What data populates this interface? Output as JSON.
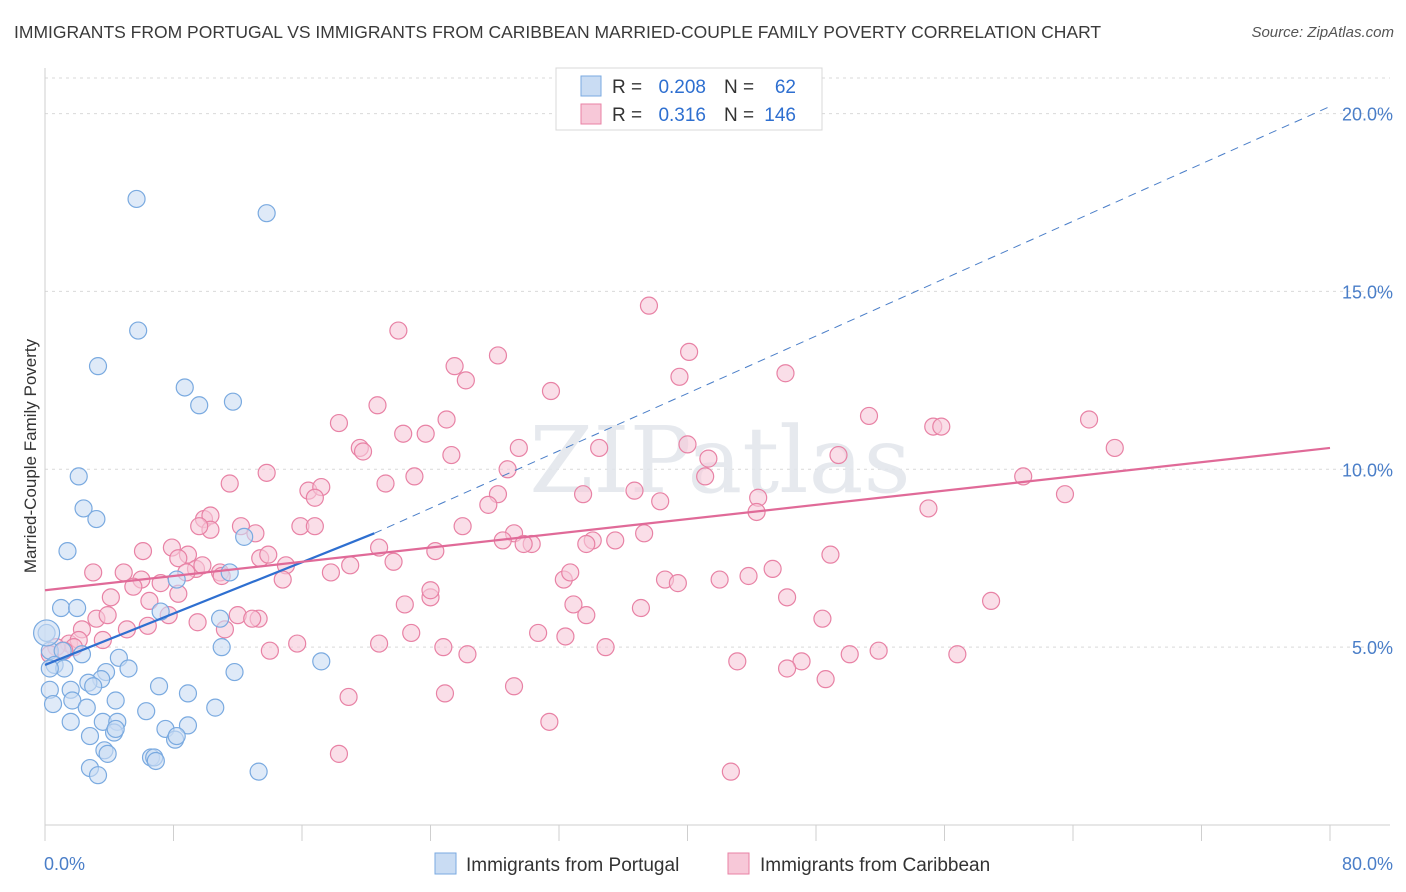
{
  "chart_data": {
    "type": "scatter",
    "title": "IMMIGRANTS FROM PORTUGAL VS IMMIGRANTS FROM CARIBBEAN MARRIED-COUPLE FAMILY POVERTY CORRELATION CHART",
    "source": "Source: ZipAtlas.com",
    "ylabel": "Married-Couple Family Poverty",
    "xlim": [
      0,
      80
    ],
    "ylim": [
      0,
      21
    ],
    "x_tick_labels": [
      "0.0%",
      "80.0%"
    ],
    "y_ticks": [
      5,
      10,
      15,
      20
    ],
    "y_tick_labels": [
      "5.0%",
      "10.0%",
      "15.0%",
      "20.0%"
    ],
    "watermark": "ZIPatlas",
    "legend": [
      {
        "r_label": "R =",
        "r_value": "0.208",
        "n_label": "N =",
        "n_value": "62"
      },
      {
        "r_label": "R =",
        "r_value": "0.316",
        "n_label": "N =",
        "n_value": "146"
      }
    ],
    "series": [
      {
        "name": "Immigrants from Portugal",
        "color": "#7aaae0",
        "fill": "#c9dcf3",
        "trend": {
          "x0": 0,
          "y0": 4.5,
          "x1": 20.5,
          "y1": 8.2,
          "dash_to_x": 80,
          "dash_to_y": 20.2
        },
        "points": [
          [
            5.7,
            17.6
          ],
          [
            13.8,
            17.2
          ],
          [
            5.8,
            13.9
          ],
          [
            3.3,
            12.9
          ],
          [
            8.7,
            12.3
          ],
          [
            9.6,
            11.8
          ],
          [
            11.7,
            11.9
          ],
          [
            2.1,
            9.8
          ],
          [
            2.4,
            8.9
          ],
          [
            3.2,
            8.6
          ],
          [
            1.4,
            7.7
          ],
          [
            12.4,
            8.1
          ],
          [
            8.2,
            6.9
          ],
          [
            11.5,
            7.1
          ],
          [
            1.0,
            6.1
          ],
          [
            2.0,
            6.1
          ],
          [
            7.2,
            6.0
          ],
          [
            10.9,
            5.8
          ],
          [
            0.1,
            5.4
          ],
          [
            0.3,
            4.9
          ],
          [
            2.3,
            4.8
          ],
          [
            1.1,
            4.9
          ],
          [
            0.6,
            4.5
          ],
          [
            1.2,
            4.4
          ],
          [
            0.3,
            4.4
          ],
          [
            4.6,
            4.7
          ],
          [
            5.2,
            4.4
          ],
          [
            3.8,
            4.3
          ],
          [
            3.5,
            4.1
          ],
          [
            2.7,
            4.0
          ],
          [
            1.6,
            3.8
          ],
          [
            3.0,
            3.9
          ],
          [
            11.0,
            5.0
          ],
          [
            11.8,
            4.3
          ],
          [
            17.2,
            4.6
          ],
          [
            7.1,
            3.9
          ],
          [
            8.9,
            3.7
          ],
          [
            0.3,
            3.8
          ],
          [
            0.5,
            3.4
          ],
          [
            1.7,
            3.5
          ],
          [
            2.6,
            3.3
          ],
          [
            4.4,
            3.5
          ],
          [
            6.3,
            3.2
          ],
          [
            10.6,
            3.3
          ],
          [
            1.6,
            2.9
          ],
          [
            3.6,
            2.9
          ],
          [
            4.5,
            2.9
          ],
          [
            7.5,
            2.7
          ],
          [
            8.9,
            2.8
          ],
          [
            2.8,
            2.5
          ],
          [
            4.3,
            2.6
          ],
          [
            8.1,
            2.4
          ],
          [
            8.2,
            2.5
          ],
          [
            3.7,
            2.1
          ],
          [
            6.6,
            1.9
          ],
          [
            6.8,
            1.9
          ],
          [
            3.9,
            2.0
          ],
          [
            2.8,
            1.6
          ],
          [
            3.3,
            1.4
          ],
          [
            6.9,
            1.8
          ],
          [
            13.3,
            1.5
          ],
          [
            4.4,
            2.7
          ]
        ]
      },
      {
        "name": "Immigrants from Caribbean",
        "color": "#e882a5",
        "fill": "#f7c8d8",
        "trend": {
          "x0": 0,
          "y0": 6.6,
          "x1": 80,
          "y1": 10.6
        },
        "points": [
          [
            37.6,
            14.6
          ],
          [
            22.0,
            13.9
          ],
          [
            28.2,
            13.2
          ],
          [
            40.1,
            13.3
          ],
          [
            25.5,
            12.9
          ],
          [
            26.2,
            12.5
          ],
          [
            39.5,
            12.6
          ],
          [
            46.1,
            12.7
          ],
          [
            31.5,
            12.2
          ],
          [
            20.7,
            11.8
          ],
          [
            18.3,
            11.3
          ],
          [
            25.0,
            11.4
          ],
          [
            22.3,
            11.0
          ],
          [
            23.7,
            11.0
          ],
          [
            51.3,
            11.5
          ],
          [
            55.3,
            11.2
          ],
          [
            55.8,
            11.2
          ],
          [
            65.0,
            11.4
          ],
          [
            19.6,
            10.6
          ],
          [
            19.8,
            10.5
          ],
          [
            25.3,
            10.4
          ],
          [
            29.5,
            10.6
          ],
          [
            34.5,
            10.6
          ],
          [
            40.0,
            10.7
          ],
          [
            41.3,
            10.3
          ],
          [
            49.4,
            10.4
          ],
          [
            66.6,
            10.6
          ],
          [
            13.8,
            9.9
          ],
          [
            28.8,
            10.0
          ],
          [
            23.0,
            9.8
          ],
          [
            21.2,
            9.6
          ],
          [
            16.4,
            9.4
          ],
          [
            17.2,
            9.5
          ],
          [
            11.5,
            9.6
          ],
          [
            41.1,
            9.8
          ],
          [
            28.2,
            9.3
          ],
          [
            33.5,
            9.3
          ],
          [
            36.7,
            9.4
          ],
          [
            38.3,
            9.1
          ],
          [
            16.8,
            9.2
          ],
          [
            27.6,
            9.0
          ],
          [
            44.4,
            9.2
          ],
          [
            60.9,
            9.8
          ],
          [
            63.5,
            9.3
          ],
          [
            9.9,
            8.6
          ],
          [
            10.3,
            8.7
          ],
          [
            12.2,
            8.4
          ],
          [
            10.3,
            8.3
          ],
          [
            15.9,
            8.4
          ],
          [
            16.8,
            8.4
          ],
          [
            9.6,
            8.4
          ],
          [
            13.1,
            8.2
          ],
          [
            26.0,
            8.4
          ],
          [
            29.2,
            8.2
          ],
          [
            34.1,
            8.0
          ],
          [
            30.3,
            7.9
          ],
          [
            33.7,
            7.9
          ],
          [
            29.8,
            7.9
          ],
          [
            35.5,
            8.0
          ],
          [
            37.3,
            8.2
          ],
          [
            28.5,
            8.0
          ],
          [
            44.3,
            8.8
          ],
          [
            55.0,
            8.9
          ],
          [
            6.1,
            7.7
          ],
          [
            7.9,
            7.8
          ],
          [
            8.9,
            7.6
          ],
          [
            8.3,
            7.5
          ],
          [
            20.8,
            7.8
          ],
          [
            24.3,
            7.7
          ],
          [
            13.4,
            7.5
          ],
          [
            13.9,
            7.6
          ],
          [
            15.0,
            7.3
          ],
          [
            9.4,
            7.2
          ],
          [
            9.8,
            7.3
          ],
          [
            3.0,
            7.1
          ],
          [
            4.9,
            7.1
          ],
          [
            6.0,
            6.9
          ],
          [
            8.8,
            7.1
          ],
          [
            10.9,
            7.1
          ],
          [
            11.0,
            7.0
          ],
          [
            14.8,
            6.9
          ],
          [
            17.8,
            7.1
          ],
          [
            19.0,
            7.3
          ],
          [
            21.7,
            7.4
          ],
          [
            5.5,
            6.7
          ],
          [
            7.2,
            6.8
          ],
          [
            8.3,
            6.5
          ],
          [
            4.1,
            6.4
          ],
          [
            6.5,
            6.3
          ],
          [
            12.0,
            5.9
          ],
          [
            13.3,
            5.8
          ],
          [
            12.9,
            5.8
          ],
          [
            9.5,
            5.7
          ],
          [
            3.2,
            5.8
          ],
          [
            3.9,
            5.9
          ],
          [
            6.4,
            5.6
          ],
          [
            7.7,
            5.9
          ],
          [
            2.3,
            5.5
          ],
          [
            3.6,
            5.2
          ],
          [
            5.1,
            5.5
          ],
          [
            1.5,
            5.1
          ],
          [
            2.1,
            5.2
          ],
          [
            1.8,
            5.0
          ],
          [
            0.7,
            5.0
          ],
          [
            1.2,
            4.9
          ],
          [
            0.3,
            4.8
          ],
          [
            14.0,
            4.9
          ],
          [
            11.2,
            5.5
          ],
          [
            15.7,
            5.1
          ],
          [
            20.8,
            5.1
          ],
          [
            22.4,
            6.2
          ],
          [
            24.0,
            6.4
          ],
          [
            24.0,
            6.6
          ],
          [
            22.8,
            5.4
          ],
          [
            32.3,
            6.9
          ],
          [
            33.7,
            5.9
          ],
          [
            30.7,
            5.4
          ],
          [
            38.6,
            6.9
          ],
          [
            42.0,
            6.9
          ],
          [
            45.3,
            7.2
          ],
          [
            48.9,
            7.6
          ],
          [
            58.9,
            6.3
          ],
          [
            32.9,
            6.2
          ],
          [
            32.4,
            5.3
          ],
          [
            39.4,
            6.8
          ],
          [
            37.1,
            6.1
          ],
          [
            32.7,
            7.1
          ],
          [
            34.9,
            5.0
          ],
          [
            24.8,
            5.0
          ],
          [
            26.3,
            4.8
          ],
          [
            43.1,
            4.6
          ],
          [
            47.1,
            4.6
          ],
          [
            50.1,
            4.8
          ],
          [
            56.8,
            4.8
          ],
          [
            51.9,
            4.9
          ],
          [
            46.2,
            4.4
          ],
          [
            48.6,
            4.1
          ],
          [
            43.8,
            7.0
          ],
          [
            46.2,
            6.4
          ],
          [
            48.4,
            5.8
          ],
          [
            18.9,
            3.6
          ],
          [
            24.9,
            3.7
          ],
          [
            29.2,
            3.9
          ],
          [
            31.4,
            2.9
          ],
          [
            18.3,
            2.0
          ],
          [
            42.7,
            1.5
          ]
        ]
      }
    ]
  },
  "bottom_legend": [
    "Immigrants from Portugal",
    "Immigrants from Caribbean"
  ]
}
